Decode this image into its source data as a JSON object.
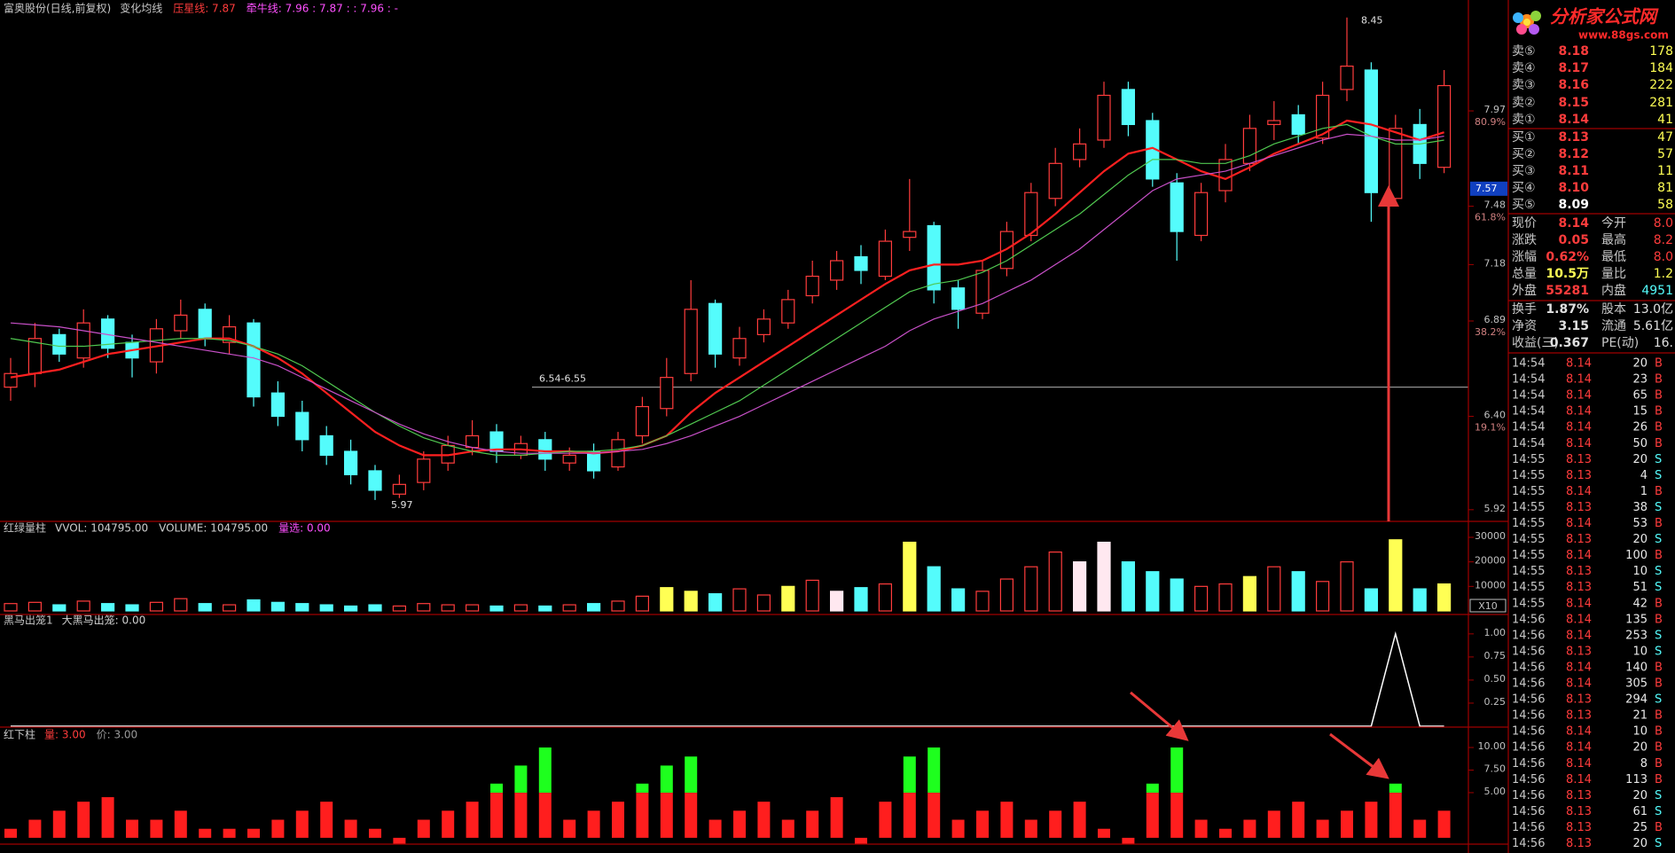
{
  "chart_data": [
    {
      "type": "candlestick",
      "title": "富奥股份(日线,前复权)",
      "legend_items": [
        {
          "text": "变化均线",
          "color": "#c8c8c8"
        },
        {
          "text": "压星线: 7.87",
          "color": "#ff3c3c"
        },
        {
          "text": "牵牛线: 7.96 : 7.87 : : 7.96 : -",
          "color": "#ff50ff"
        }
      ],
      "open": [
        6.55,
        6.62,
        6.82,
        6.7,
        6.9,
        6.78,
        6.68,
        6.84,
        6.95,
        6.78,
        6.88,
        6.52,
        6.42,
        6.3,
        6.22,
        6.12,
        6.0,
        6.06,
        6.16,
        6.24,
        6.32,
        6.2,
        6.28,
        6.16,
        6.22,
        6.14,
        6.3,
        6.44,
        6.62,
        6.98,
        6.7,
        6.82,
        6.88,
        7.02,
        7.1,
        7.22,
        7.12,
        7.32,
        7.38,
        7.06,
        6.93,
        7.16,
        7.33,
        7.52,
        7.72,
        7.82,
        8.08,
        7.92,
        7.6,
        7.33,
        7.56,
        7.7,
        7.9,
        7.95,
        7.83,
        8.08,
        8.18,
        7.52,
        7.9,
        7.68
      ],
      "high": [
        6.7,
        6.88,
        6.85,
        6.95,
        6.92,
        6.82,
        6.9,
        7.0,
        6.98,
        6.92,
        6.9,
        6.58,
        6.48,
        6.35,
        6.28,
        6.15,
        6.1,
        6.22,
        6.3,
        6.38,
        6.36,
        6.3,
        6.32,
        6.24,
        6.26,
        6.32,
        6.5,
        6.7,
        7.1,
        7.0,
        6.86,
        6.95,
        7.05,
        7.2,
        7.25,
        7.28,
        7.36,
        7.62,
        7.4,
        7.1,
        7.2,
        7.4,
        7.6,
        7.78,
        7.88,
        8.12,
        8.12,
        7.96,
        7.65,
        7.6,
        7.8,
        7.95,
        8.02,
        8.0,
        8.12,
        8.45,
        8.22,
        7.95,
        7.98,
        8.18
      ],
      "low": [
        6.48,
        6.55,
        6.68,
        6.65,
        6.7,
        6.6,
        6.62,
        6.8,
        6.76,
        6.72,
        6.45,
        6.35,
        6.22,
        6.15,
        6.05,
        5.97,
        5.98,
        6.02,
        6.12,
        6.2,
        6.16,
        6.18,
        6.12,
        6.12,
        6.08,
        6.12,
        6.26,
        6.4,
        6.58,
        6.65,
        6.66,
        6.78,
        6.85,
        6.98,
        7.05,
        7.08,
        7.1,
        7.25,
        6.98,
        6.85,
        6.9,
        7.12,
        7.3,
        7.48,
        7.68,
        7.78,
        7.84,
        7.58,
        7.2,
        7.3,
        7.5,
        7.66,
        7.82,
        7.8,
        7.8,
        8.02,
        7.4,
        7.5,
        7.62,
        7.65
      ],
      "close": [
        6.62,
        6.8,
        6.72,
        6.88,
        6.75,
        6.7,
        6.85,
        6.92,
        6.8,
        6.86,
        6.5,
        6.4,
        6.28,
        6.2,
        6.1,
        6.02,
        6.05,
        6.18,
        6.25,
        6.3,
        6.22,
        6.26,
        6.18,
        6.2,
        6.12,
        6.28,
        6.45,
        6.6,
        6.95,
        6.72,
        6.8,
        6.9,
        7.0,
        7.12,
        7.2,
        7.15,
        7.3,
        7.35,
        7.05,
        6.95,
        7.15,
        7.35,
        7.55,
        7.7,
        7.8,
        8.05,
        7.9,
        7.62,
        7.35,
        7.55,
        7.72,
        7.88,
        7.92,
        7.85,
        8.05,
        8.2,
        7.55,
        7.88,
        7.7,
        8.1
      ],
      "up_color": "#ff3c3c",
      "down_color": "#54fcfc",
      "lines": [
        {
          "color": "#ff2020",
          "values": [
            6.6,
            6.62,
            6.64,
            6.68,
            6.72,
            6.74,
            6.76,
            6.78,
            6.8,
            6.8,
            6.76,
            6.7,
            6.62,
            6.52,
            6.42,
            6.32,
            6.25,
            6.2,
            6.2,
            6.22,
            6.23,
            6.23,
            6.22,
            6.22,
            6.21,
            6.22,
            6.25,
            6.3,
            6.42,
            6.52,
            6.6,
            6.68,
            6.76,
            6.84,
            6.92,
            7.0,
            7.08,
            7.15,
            7.18,
            7.18,
            7.2,
            7.26,
            7.34,
            7.44,
            7.55,
            7.66,
            7.75,
            7.78,
            7.72,
            7.66,
            7.62,
            7.68,
            7.75,
            7.8,
            7.85,
            7.92,
            7.9,
            7.86,
            7.82,
            7.86
          ]
        },
        {
          "color": "#50c850",
          "values": [
            6.8,
            6.78,
            6.76,
            6.76,
            6.77,
            6.78,
            6.79,
            6.8,
            6.8,
            6.79,
            6.76,
            6.72,
            6.66,
            6.58,
            6.5,
            6.42,
            6.35,
            6.29,
            6.25,
            6.22,
            6.2,
            6.2,
            6.21,
            6.22,
            6.22,
            6.23,
            6.25,
            6.3,
            6.36,
            6.42,
            6.48,
            6.56,
            6.64,
            6.72,
            6.8,
            6.88,
            6.96,
            7.04,
            7.08,
            7.1,
            7.14,
            7.2,
            7.28,
            7.36,
            7.44,
            7.54,
            7.64,
            7.72,
            7.72,
            7.7,
            7.7,
            7.74,
            7.8,
            7.84,
            7.88,
            7.9,
            7.84,
            7.8,
            7.8,
            7.82
          ]
        },
        {
          "color": "#c850c8",
          "values": [
            6.88,
            6.87,
            6.86,
            6.84,
            6.82,
            6.8,
            6.78,
            6.76,
            6.74,
            6.72,
            6.7,
            6.66,
            6.6,
            6.54,
            6.48,
            6.42,
            6.36,
            6.31,
            6.27,
            6.24,
            6.22,
            6.21,
            6.21,
            6.21,
            6.21,
            6.22,
            6.23,
            6.26,
            6.3,
            6.35,
            6.4,
            6.46,
            6.52,
            6.58,
            6.64,
            6.7,
            6.76,
            6.84,
            6.9,
            6.94,
            6.98,
            7.04,
            7.1,
            7.18,
            7.26,
            7.36,
            7.46,
            7.56,
            7.62,
            7.64,
            7.66,
            7.7,
            7.74,
            7.78,
            7.82,
            7.85,
            7.84,
            7.82,
            7.82,
            7.84
          ]
        }
      ],
      "ylim": [
        5.86,
        8.54
      ],
      "yticks": [
        7.97,
        7.48,
        7.18,
        6.89,
        {
          "value": 6.4,
          "label": "6.40"
        },
        5.92
      ],
      "fib_labels": [
        {
          "value": 7.97,
          "label": "80.9%"
        },
        {
          "value": 7.48,
          "label": "61.8%"
        },
        {
          "value": 6.89,
          "label": "38.2%"
        },
        {
          "value": 6.4,
          "label": "19.1%"
        }
      ],
      "cursor_price": 7.57,
      "support": {
        "label": "6.54-6.55",
        "value": 6.55
      }
    },
    {
      "type": "bar",
      "title": "红绿量柱",
      "legend_items": [
        {
          "text": "VVOL: 104795.00",
          "color": "#d0d0d0"
        },
        {
          "text": "VOLUME: 104795.00",
          "color": "#d0d0d0"
        },
        {
          "text": "量选: 0.00",
          "color": "#ff50ff"
        }
      ],
      "values": [
        3000,
        3500,
        2500,
        4000,
        3000,
        2500,
        3500,
        5000,
        3000,
        2500,
        4500,
        3500,
        3000,
        2500,
        2000,
        2500,
        2000,
        3000,
        2500,
        2500,
        2000,
        2500,
        2000,
        2500,
        3000,
        4000,
        6000,
        9500,
        8000,
        7000,
        9000,
        6500,
        10000,
        12500,
        8000,
        9500,
        11000,
        28000,
        18000,
        9000,
        8000,
        13000,
        18000,
        24000,
        20000,
        28000,
        20000,
        16000,
        13000,
        10000,
        11000,
        14000,
        18000,
        16000,
        12000,
        20000,
        9000,
        29000,
        9000,
        11000
      ],
      "styles": [
        "up",
        "up",
        "down",
        "up",
        "down",
        "down",
        "up",
        "up",
        "down",
        "up",
        "down",
        "down",
        "down",
        "down",
        "down",
        "down",
        "up",
        "up",
        "up",
        "up",
        "down",
        "up",
        "down",
        "up",
        "down",
        "up",
        "up",
        "yellow",
        "yellow",
        "down",
        "up",
        "up",
        "yellow",
        "up",
        "white",
        "down",
        "up",
        "yellow",
        "down",
        "down",
        "up",
        "up",
        "up",
        "up",
        "white",
        "white",
        "down",
        "down",
        "down",
        "up",
        "up",
        "yellow",
        "up",
        "down",
        "up",
        "up",
        "down",
        "yellow",
        "down",
        "yellow"
      ],
      "style_colors": {
        "up": "#ff3c3c",
        "down": "#54fcfc",
        "yellow": "#ffff54",
        "white": "#ffe8f0"
      },
      "ylim": [
        0,
        36500
      ],
      "yticks": [
        10000,
        20000,
        30000
      ],
      "unit_label": "X10"
    },
    {
      "type": "line",
      "title": "黑马出笼1",
      "legend_items": [
        {
          "text": "大黑马出笼: 0.00",
          "color": "#d0d0d0"
        }
      ],
      "values": [
        0,
        0,
        0,
        0,
        0,
        0,
        0,
        0,
        0,
        0,
        0,
        0,
        0,
        0,
        0,
        0,
        0,
        0,
        0,
        0,
        0,
        0,
        0,
        0,
        0,
        0,
        0,
        0,
        0,
        0,
        0,
        0,
        0,
        0,
        0,
        0,
        0,
        0,
        0,
        0,
        0,
        0,
        0,
        0,
        0,
        0,
        0,
        0,
        0,
        0,
        0,
        0,
        0,
        0,
        0,
        0,
        0,
        1,
        0,
        0
      ],
      "color": "#ffffff",
      "ylim": [
        0,
        1.21
      ],
      "yticks": [
        0.25,
        {
          "value": 0.5,
          "label": "0.50"
        },
        0.75,
        {
          "value": 1,
          "label": "1.00"
        }
      ]
    },
    {
      "type": "bar",
      "title": "红下柱",
      "legend_items": [
        {
          "text": "量: 3.00",
          "color": "#ff3c3c"
        },
        {
          "text": "价: 3.00",
          "color": "#9a9a9a"
        }
      ],
      "values": [
        1,
        2,
        3,
        4,
        4.5,
        2,
        2,
        3,
        1,
        1,
        1,
        2,
        3,
        4,
        2,
        1,
        -1,
        2,
        3,
        4,
        6,
        8,
        10,
        2,
        3,
        4,
        6,
        8,
        9,
        2,
        3,
        4,
        2,
        3,
        4.5,
        -1,
        4,
        9,
        10,
        2,
        3,
        4,
        2,
        3,
        4,
        1,
        -1,
        6,
        10,
        2,
        1,
        2,
        3,
        4,
        2,
        3,
        4,
        6,
        2,
        3
      ],
      "color": "#ff1e1e",
      "color_above": "#1eff1e",
      "threshold": 5,
      "ylim": [
        -0.7,
        12.26
      ],
      "yticks": [
        {
          "value": 5,
          "label": "5.00"
        },
        {
          "value": 7.5,
          "label": "7.50"
        },
        {
          "value": 10,
          "label": "10.00"
        }
      ]
    }
  ],
  "quote_panel": {
    "logo": {
      "title": "分析家公式网",
      "url": "www.88gs.com"
    },
    "sell": [
      {
        "label": "卖⑤",
        "price": "8.18",
        "volume": "178",
        "color": "#ff3c3c"
      },
      {
        "label": "卖④",
        "price": "8.17",
        "volume": "184",
        "color": "#ff3c3c"
      },
      {
        "label": "卖③",
        "price": "8.16",
        "volume": "222",
        "color": "#ff3c3c"
      },
      {
        "label": "卖②",
        "price": "8.15",
        "volume": "281",
        "color": "#ff3c3c"
      },
      {
        "label": "卖①",
        "price": "8.14",
        "volume": "41",
        "color": "#ff3c3c"
      }
    ],
    "buy": [
      {
        "label": "买①",
        "price": "8.13",
        "volume": "47",
        "color": "#ff3c3c"
      },
      {
        "label": "买②",
        "price": "8.12",
        "volume": "57",
        "color": "#ff3c3c"
      },
      {
        "label": "买③",
        "price": "8.11",
        "volume": "11",
        "color": "#ff3c3c"
      },
      {
        "label": "买④",
        "price": "8.10",
        "volume": "81",
        "color": "#ff3c3c"
      },
      {
        "label": "买⑤",
        "price": "8.09",
        "volume": "58",
        "color": "#ffffff"
      }
    ],
    "stats": [
      {
        "l1": "现价",
        "v1": "8.14",
        "c1": "#ff3c3c",
        "l2": "今开",
        "v2": "8.0",
        "c2": "#ff3c3c"
      },
      {
        "l1": "涨跌",
        "v1": "0.05",
        "c1": "#ff3c3c",
        "l2": "最高",
        "v2": "8.2",
        "c2": "#ff3c3c"
      },
      {
        "l1": "涨幅",
        "v1": "0.62%",
        "c1": "#ff3c3c",
        "l2": "最低",
        "v2": "8.0",
        "c2": "#ff3c3c"
      },
      {
        "l1": "总量",
        "v1": "10.5万",
        "c1": "#ffff54",
        "l2": "量比",
        "v2": "1.2",
        "c2": "#ffff54"
      },
      {
        "l1": "外盘",
        "v1": "55281",
        "c1": "#ff3c3c",
        "l2": "内盘",
        "v2": "4951",
        "c2": "#54fcfc"
      },
      {
        "l1": "换手",
        "v1": "1.87%",
        "c1": "#e0e0e0",
        "l2": "股本",
        "v2": "13.0亿",
        "c2": "#e0e0e0"
      },
      {
        "l1": "净资",
        "v1": "3.15",
        "c1": "#e0e0e0",
        "l2": "流通",
        "v2": "5.61亿",
        "c2": "#e0e0e0"
      },
      {
        "l1": "收益(三)",
        "v1": "0.367",
        "c1": "#e0e0e0",
        "l2": "PE(动)",
        "v2": "16.",
        "c2": "#e0e0e0"
      }
    ]
  },
  "trades": {
    "side_colors": {
      "B": "#ff3c3c",
      "S": "#54fcfc"
    },
    "rows": [
      {
        "time": "14:54",
        "price": "8.14",
        "volume": "20",
        "side": "B"
      },
      {
        "time": "14:54",
        "price": "8.14",
        "volume": "23",
        "side": "B"
      },
      {
        "time": "14:54",
        "price": "8.14",
        "volume": "65",
        "side": "B"
      },
      {
        "time": "14:54",
        "price": "8.14",
        "volume": "15",
        "side": "B"
      },
      {
        "time": "14:54",
        "price": "8.14",
        "volume": "26",
        "side": "B"
      },
      {
        "time": "14:54",
        "price": "8.14",
        "volume": "50",
        "side": "B"
      },
      {
        "time": "14:55",
        "price": "8.13",
        "volume": "20",
        "side": "S"
      },
      {
        "time": "14:55",
        "price": "8.13",
        "volume": "4",
        "side": "S"
      },
      {
        "time": "14:55",
        "price": "8.14",
        "volume": "1",
        "side": "B"
      },
      {
        "time": "14:55",
        "price": "8.13",
        "volume": "38",
        "side": "S"
      },
      {
        "time": "14:55",
        "price": "8.14",
        "volume": "53",
        "side": "B"
      },
      {
        "time": "14:55",
        "price": "8.13",
        "volume": "20",
        "side": "S"
      },
      {
        "time": "14:55",
        "price": "8.14",
        "volume": "100",
        "side": "B"
      },
      {
        "time": "14:55",
        "price": "8.13",
        "volume": "10",
        "side": "S"
      },
      {
        "time": "14:55",
        "price": "8.13",
        "volume": "51",
        "side": "S"
      },
      {
        "time": "14:55",
        "price": "8.14",
        "volume": "42",
        "side": "B"
      },
      {
        "time": "14:56",
        "price": "8.14",
        "volume": "135",
        "side": "B"
      },
      {
        "time": "14:56",
        "price": "8.14",
        "volume": "253",
        "side": "S"
      },
      {
        "time": "14:56",
        "price": "8.13",
        "volume": "10",
        "side": "S"
      },
      {
        "time": "14:56",
        "price": "8.14",
        "volume": "140",
        "side": "B"
      },
      {
        "time": "14:56",
        "price": "8.14",
        "volume": "305",
        "side": "B"
      },
      {
        "time": "14:56",
        "price": "8.13",
        "volume": "294",
        "side": "S"
      },
      {
        "time": "14:56",
        "price": "8.13",
        "volume": "21",
        "side": "B"
      },
      {
        "time": "14:56",
        "price": "8.14",
        "volume": "10",
        "side": "B"
      },
      {
        "time": "14:56",
        "price": "8.14",
        "volume": "20",
        "side": "B"
      },
      {
        "time": "14:56",
        "price": "8.14",
        "volume": "8",
        "side": "B"
      },
      {
        "time": "14:56",
        "price": "8.14",
        "volume": "113",
        "side": "B"
      },
      {
        "time": "14:56",
        "price": "8.13",
        "volume": "20",
        "side": "S"
      },
      {
        "time": "14:56",
        "price": "8.13",
        "volume": "61",
        "side": "S"
      },
      {
        "time": "14:56",
        "price": "8.13",
        "volume": "25",
        "side": "B"
      },
      {
        "time": "14:56",
        "price": "8.13",
        "volume": "20",
        "side": "S"
      }
    ]
  }
}
